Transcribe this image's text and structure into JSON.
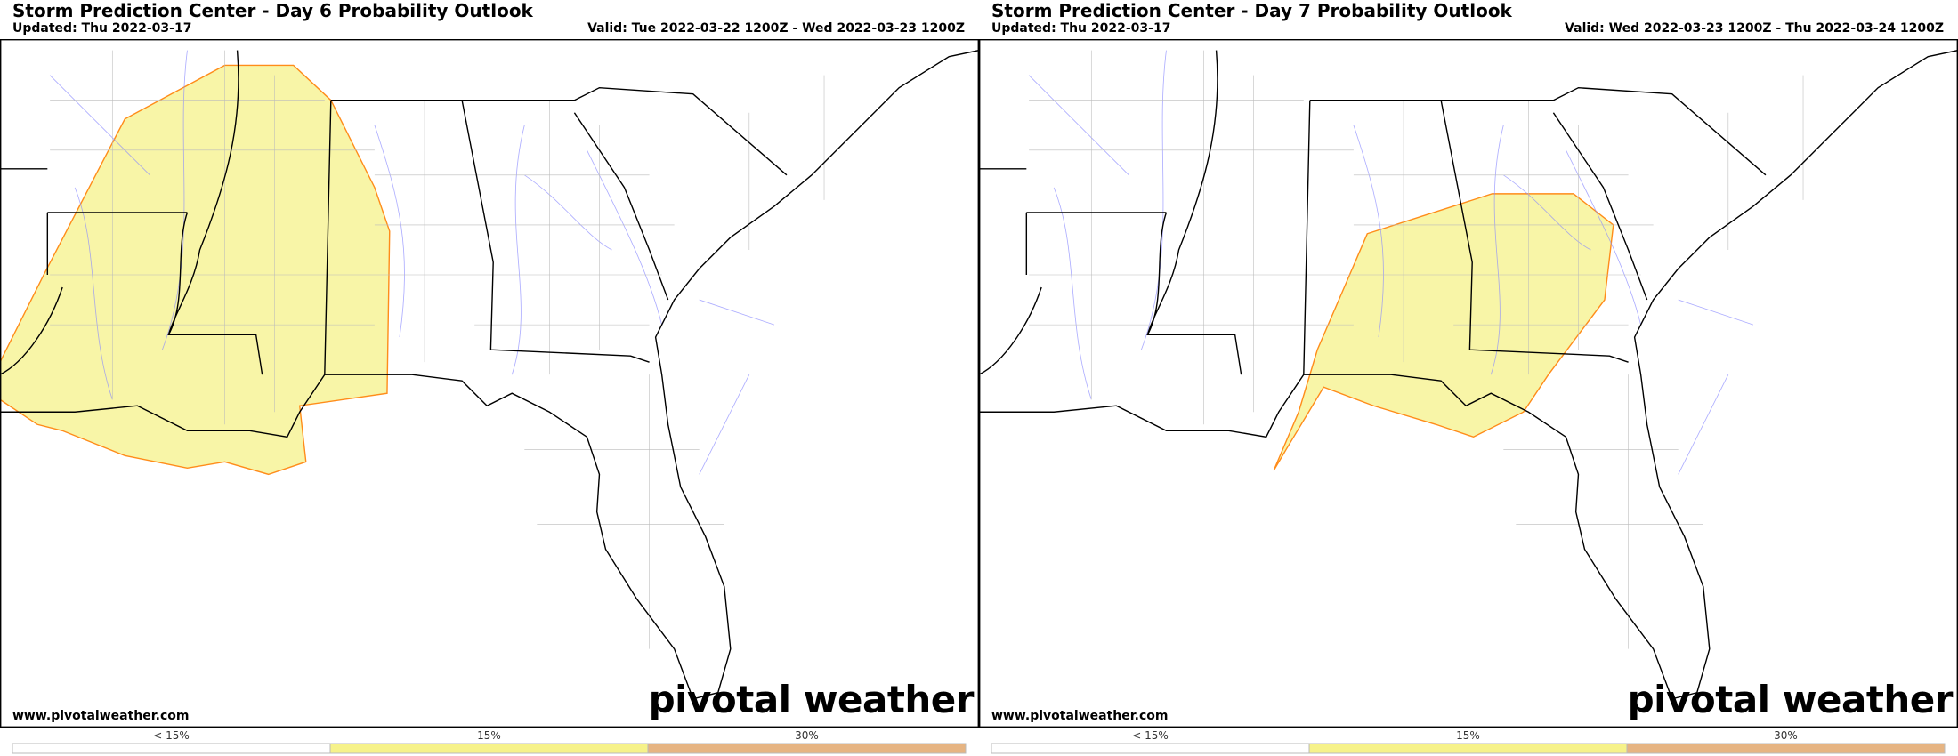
{
  "panels": [
    {
      "title": "Storm Prediction Center - Day 6 Probability Outlook",
      "updated": "Updated: Thu 2022-03-17",
      "valid": "Valid: Tue 2022-03-22 1200Z - Wed 2022-03-23 1200Z",
      "url": "www.pivotalweather.com",
      "watermark": "pivotal weather",
      "legend": {
        "labels": [
          "< 15%",
          "15%",
          "30%"
        ],
        "colors": [
          "#ffffff",
          "#f6f28a",
          "#e6b482"
        ]
      }
    },
    {
      "title": "Storm Prediction Center - Day 7 Probability Outlook",
      "updated": "Updated: Thu 2022-03-17",
      "valid": "Valid: Wed 2022-03-23 1200Z - Thu 2022-03-24 1200Z",
      "url": "www.pivotalweather.com",
      "watermark": "pivotal weather",
      "legend": {
        "labels": [
          "< 15%",
          "15%",
          "30%"
        ],
        "colors": [
          "#ffffff",
          "#f6f28a",
          "#e6b482"
        ]
      }
    }
  ]
}
